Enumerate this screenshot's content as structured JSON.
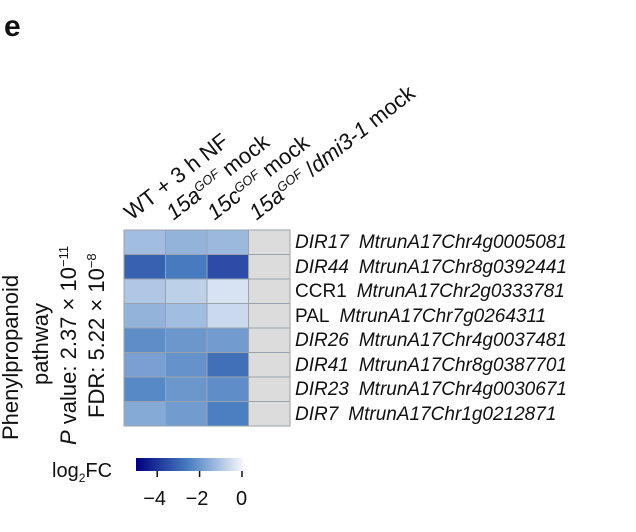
{
  "panel_letter": "e",
  "columns": [
    {
      "label": "WT + 3 h NF",
      "parts": [
        {
          "t": "WT + 3 h NF"
        }
      ]
    },
    {
      "label": "15a GOF mock",
      "parts": [
        {
          "t": "15a",
          "i": true
        },
        {
          "t": "GOF",
          "sup": true
        },
        {
          "t": " mock"
        }
      ]
    },
    {
      "label": "15c GOF mock",
      "parts": [
        {
          "t": "15c",
          "i": true
        },
        {
          "t": "GOF",
          "sup": true
        },
        {
          "t": " mock"
        }
      ]
    },
    {
      "label": "15a GOF /dmi3-1 mock",
      "parts": [
        {
          "t": "15a",
          "i": true
        },
        {
          "t": "GOF",
          "sup": true
        },
        {
          "t": " /"
        },
        {
          "t": "dmi3-1",
          "i": true
        },
        {
          "t": " mock"
        }
      ]
    }
  ],
  "side_labels": {
    "line1": "Phenylpropanoid",
    "line2": "pathway",
    "pvalue_prefix": "P",
    "pvalue_text": " value: 2.37 × 10",
    "pvalue_exp": "−11",
    "fdr_text": "FDR: 5.22 × 10",
    "fdr_exp": "−8"
  },
  "colorbar": {
    "title_main": "log",
    "title_sub": "2",
    "title_rest": "FC",
    "ticks": [
      "−4",
      "−2",
      "0"
    ],
    "min": -5,
    "max": 0,
    "color_low": "#00007f",
    "color_mid": "#4a7fc1",
    "color_high": "#f2f6fb"
  },
  "chart_data": {
    "type": "heatmap",
    "title": "",
    "xlabel": "",
    "ylabel": "",
    "columns": [
      "WT + 3 h NF",
      "15a GOF mock",
      "15c GOF mock",
      "15a GOF /dmi3-1 mock"
    ],
    "rows": [
      {
        "gene": "DIR17",
        "italic": true,
        "locus": "MtrunA17Chr4g0005081"
      },
      {
        "gene": "DIR44",
        "italic": true,
        "locus": "MtrunA17Chr8g0392441"
      },
      {
        "gene": "CCR1",
        "italic": false,
        "locus": "MtrunA17Chr2g0333781"
      },
      {
        "gene": "PAL",
        "italic": false,
        "locus": "MtrunA17Chr7g0264311"
      },
      {
        "gene": "DIR26",
        "italic": true,
        "locus": "MtrunA17Chr4g0037481"
      },
      {
        "gene": "DIR41",
        "italic": true,
        "locus": "MtrunA17Chr8g0387701"
      },
      {
        "gene": "DIR23",
        "italic": true,
        "locus": "MtrunA17Chr4g0030671"
      },
      {
        "gene": "DIR7",
        "italic": true,
        "locus": "MtrunA17Chr1g0212871"
      }
    ],
    "values": [
      [
        -1.2,
        -1.4,
        -1.3,
        null
      ],
      [
        -3.1,
        -2.6,
        -3.5,
        null
      ],
      [
        -1.0,
        -0.8,
        -0.4,
        null
      ],
      [
        -1.4,
        -1.2,
        -0.6,
        null
      ],
      [
        -2.2,
        -2.0,
        -1.9,
        null
      ],
      [
        -1.8,
        -2.1,
        -2.8,
        null
      ],
      [
        -2.3,
        -2.0,
        -2.2,
        null
      ],
      [
        -1.6,
        -1.9,
        -2.5,
        null
      ]
    ],
    "value_range": [
      -5,
      0
    ],
    "missing_color": "#dcdcdc",
    "cell_border": "#9aa3ad"
  }
}
